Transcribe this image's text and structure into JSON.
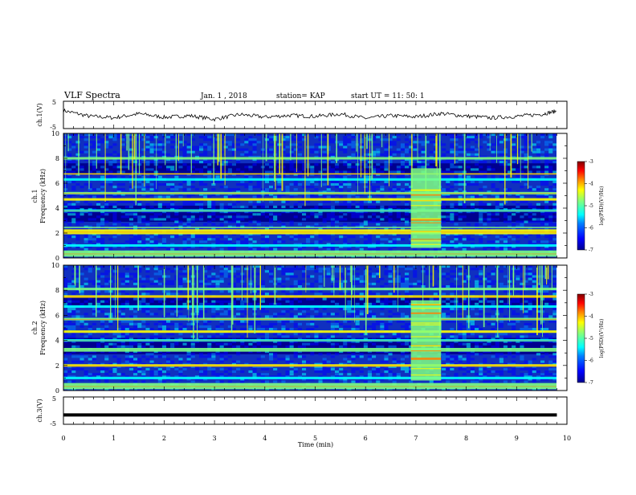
{
  "header": {
    "title": "VLF Spectra",
    "date": "Jan. 1 , 2018",
    "station": "station= KAP",
    "start": "start  UT =   11: 50: 1"
  },
  "colors": {
    "jet": [
      "#00008f",
      "#0000ff",
      "#0080ff",
      "#00ffff",
      "#80ff80",
      "#ffff00",
      "#ff8000",
      "#ff0000",
      "#800000"
    ],
    "trace": "#000000",
    "axis": "#000000"
  },
  "chart_data": [
    {
      "type": "line",
      "name": "ch1-waveform",
      "ylabel": "ch.1(V)",
      "ylim": [
        -5,
        5
      ],
      "yticks": [
        "5",
        "-5"
      ],
      "xlim": [
        0,
        10
      ],
      "x": [
        0,
        0.5,
        1,
        1.5,
        2,
        2.5,
        3,
        3.5,
        4,
        4.5,
        5,
        5.5,
        6,
        6.5,
        7,
        7.5,
        8,
        8.5,
        9,
        9.5,
        9.8
      ],
      "y": [
        1.8,
        -0.5,
        -1.2,
        0.5,
        -1.0,
        -0.3,
        -1.8,
        0.2,
        -0.9,
        -0.2,
        -0.6,
        0.4,
        -1.4,
        -0.3,
        -0.8,
        0.6,
        -0.5,
        -1.2,
        -0.6,
        0.3,
        1.6
      ]
    },
    {
      "type": "heatmap",
      "name": "ch1-spectrogram",
      "ylabel_top": "ch.1",
      "ylabel": "Frequency (kHz)",
      "xlim": [
        0,
        9.8
      ],
      "ylim": [
        0,
        10
      ],
      "yticks": [
        "0",
        "2",
        "4",
        "6",
        "8",
        "10"
      ],
      "colorbar": {
        "label": "log(PSD)(V²/Hz)",
        "ticks": [
          "-3",
          "-4",
          "-5",
          "-6",
          "-7"
        ],
        "range": [
          -7,
          -3
        ]
      },
      "bands_khz": [
        [
          0.1,
          0.6
        ],
        [
          0.9,
          1.1
        ],
        [
          1.9,
          2.3
        ],
        [
          2.4,
          2.5
        ],
        [
          3.7,
          3.9
        ],
        [
          4.6,
          4.8
        ],
        [
          5.1,
          5.3
        ],
        [
          6.2,
          6.4
        ],
        [
          6.7,
          6.8
        ],
        [
          7.9,
          8.1
        ]
      ],
      "burst_min": [
        6.9,
        7.5
      ]
    },
    {
      "type": "heatmap",
      "name": "ch2-spectrogram",
      "ylabel_top": "ch.2",
      "ylabel": "Frequency (kHz)",
      "xlim": [
        0,
        9.8
      ],
      "ylim": [
        0,
        10
      ],
      "yticks": [
        "0",
        "2",
        "4",
        "6",
        "8",
        "10"
      ],
      "colorbar": {
        "label": "log(PSD)(V²/Hz)",
        "ticks": [
          "-3",
          "-4",
          "-5",
          "-6",
          "-7"
        ],
        "range": [
          -7,
          -3
        ]
      },
      "bands_khz": [
        [
          0.1,
          0.6
        ],
        [
          0.9,
          1.1
        ],
        [
          1.9,
          2.1
        ],
        [
          3.1,
          3.4
        ],
        [
          3.9,
          4.1
        ],
        [
          4.6,
          4.8
        ],
        [
          5.6,
          5.8
        ],
        [
          6.6,
          6.8
        ],
        [
          7.4,
          7.6
        ],
        [
          8.0,
          8.2
        ]
      ],
      "burst_min": [
        6.9,
        7.5
      ]
    },
    {
      "type": "line",
      "name": "ch3-waveform",
      "ylabel": "ch.3(V)",
      "ylim": [
        -5,
        5
      ],
      "yticks": [
        "5",
        "-5"
      ],
      "xlim": [
        0,
        10
      ],
      "x": [
        0,
        9.8
      ],
      "y": [
        -1.8,
        -1.8
      ],
      "xlabel": "Time  (min)",
      "xticks": [
        "0",
        "1",
        "2",
        "3",
        "4",
        "5",
        "6",
        "7",
        "8",
        "9",
        "10"
      ]
    }
  ]
}
